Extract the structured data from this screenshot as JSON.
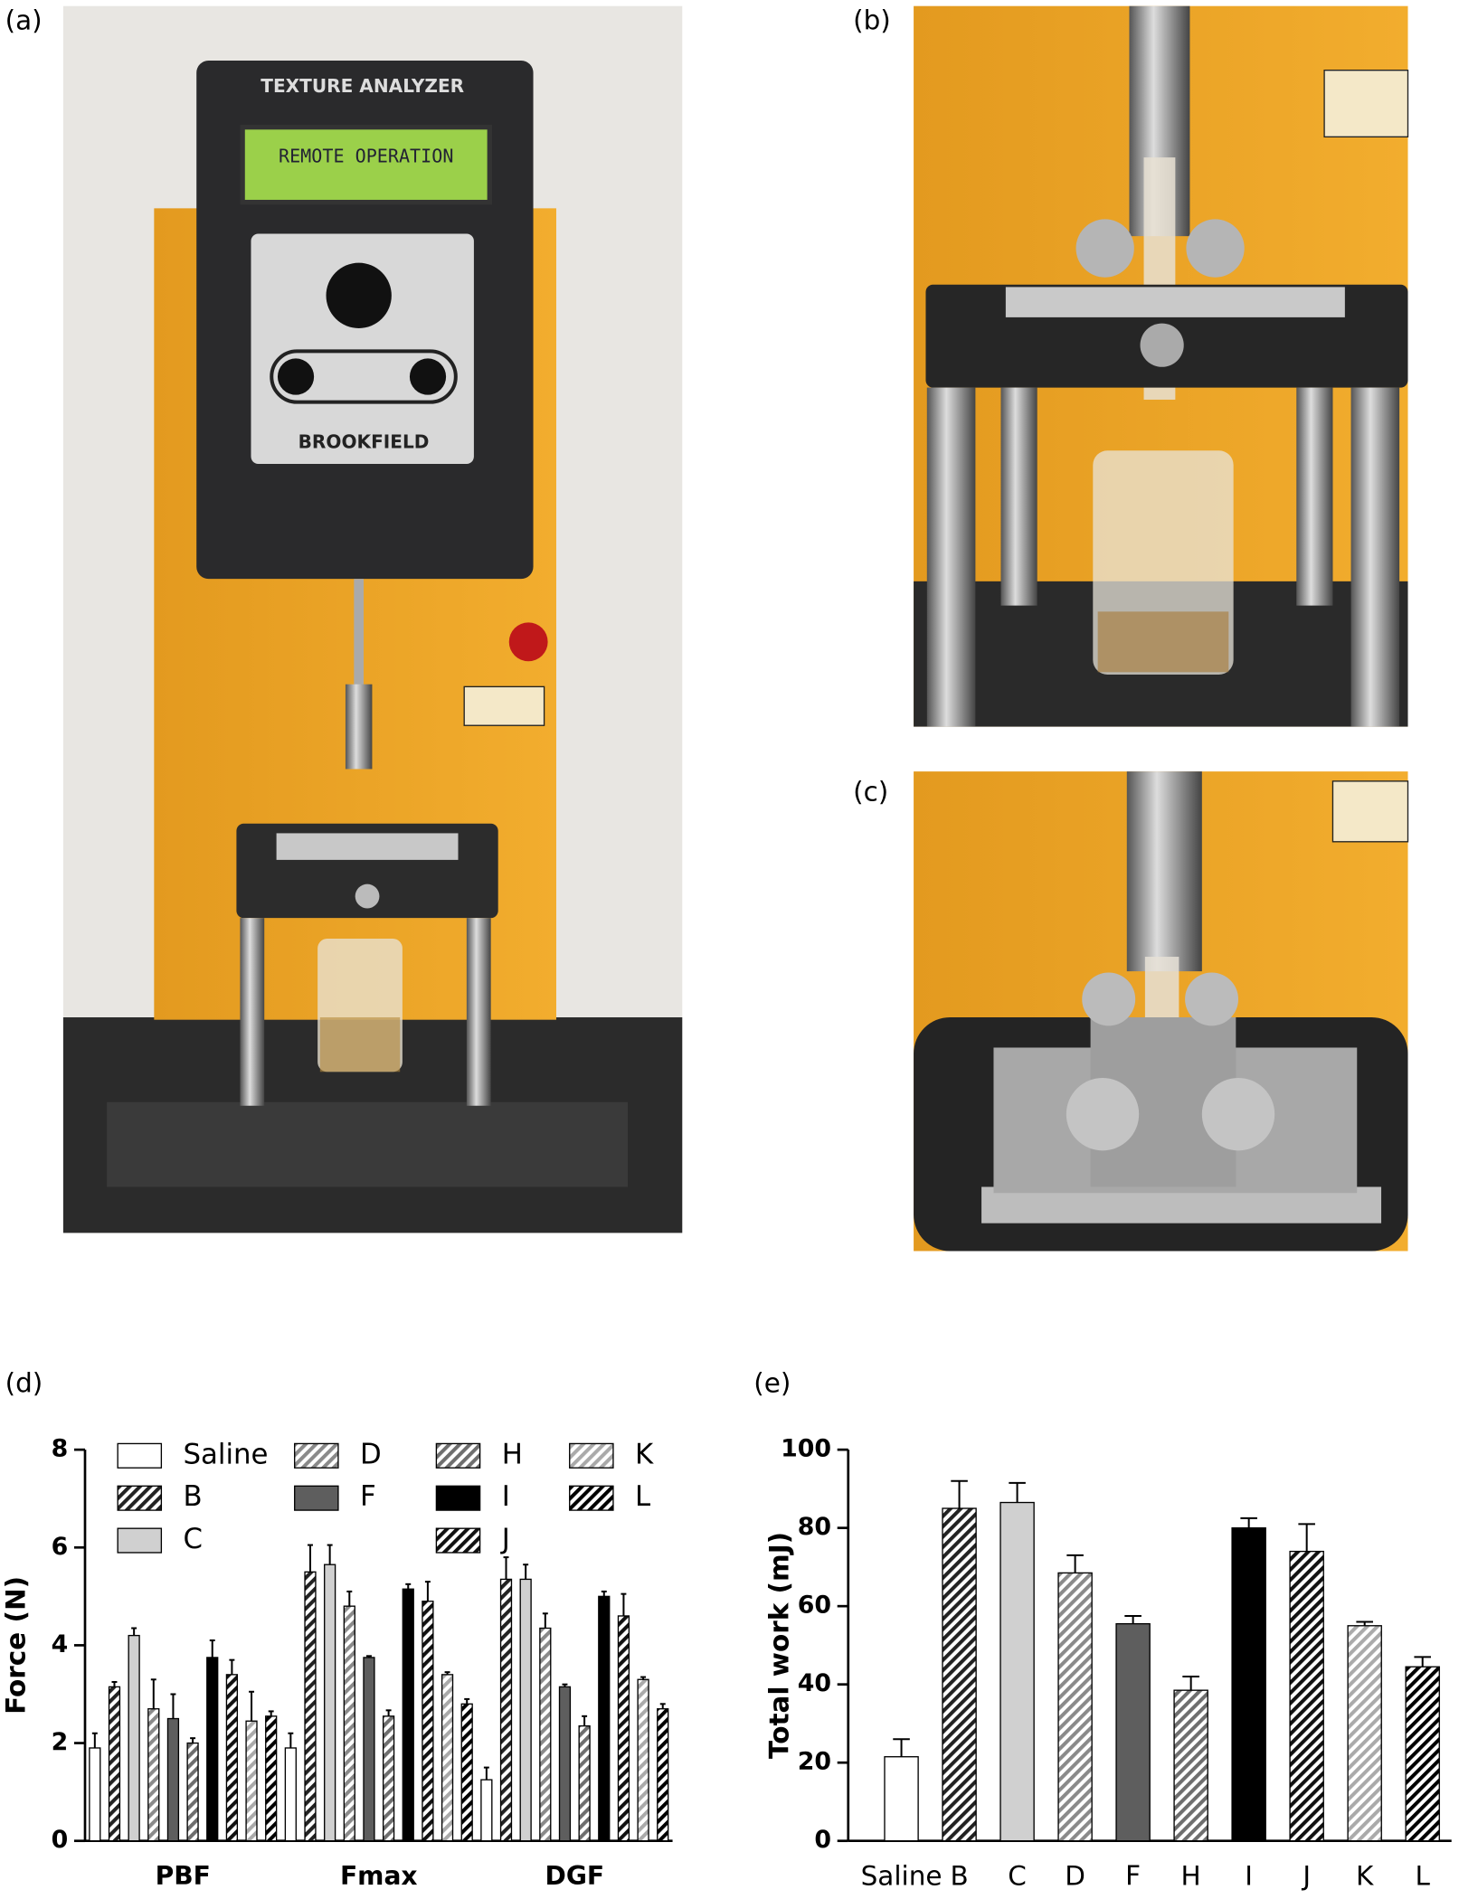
{
  "panel_labels": [
    "(a)",
    "(b)",
    "(c)",
    "(d)",
    "(e)"
  ],
  "photo_text": {
    "brand": "TEXTURE ANALYZER",
    "screen": "REMOTE OPERATION",
    "maker": "BROOKFIELD"
  },
  "chart_data": [
    {
      "type": "bar",
      "ylabel": "Force (N)",
      "categories": [
        "PBF",
        "Fmax",
        "DGF"
      ],
      "ylim": [
        0,
        8
      ],
      "yticks": [
        0,
        2,
        4,
        6,
        8
      ],
      "series": [
        {
          "name": "Saline",
          "color": "#ffffff",
          "hatch": false,
          "values": [
            1.9,
            1.9,
            1.25
          ],
          "errors": [
            0.3,
            0.3,
            0.25
          ]
        },
        {
          "name": "B",
          "color": "#222222",
          "hatch": true,
          "values": [
            3.15,
            5.5,
            5.35
          ],
          "errors": [
            0.1,
            0.55,
            0.45
          ]
        },
        {
          "name": "C",
          "color": "#d0d0d0",
          "hatch": false,
          "values": [
            4.2,
            5.65,
            5.35
          ],
          "errors": [
            0.15,
            0.4,
            0.3
          ]
        },
        {
          "name": "D",
          "color": "#8a8a8a",
          "hatch": true,
          "values": [
            2.7,
            4.8,
            4.35
          ],
          "errors": [
            0.6,
            0.3,
            0.3
          ]
        },
        {
          "name": "F",
          "color": "#5e5e5e",
          "hatch": false,
          "values": [
            2.5,
            3.75,
            3.15
          ],
          "errors": [
            0.5,
            0.03,
            0.05
          ]
        },
        {
          "name": "H",
          "color": "#6e6e6e",
          "hatch": true,
          "values": [
            2.0,
            2.55,
            2.35
          ],
          "errors": [
            0.1,
            0.12,
            0.2
          ]
        },
        {
          "name": "I",
          "color": "#000000",
          "hatch": false,
          "values": [
            3.75,
            5.15,
            5.0
          ],
          "errors": [
            0.35,
            0.1,
            0.1
          ]
        },
        {
          "name": "J",
          "color": "#111111",
          "hatch": true,
          "values": [
            3.4,
            4.9,
            4.6
          ],
          "errors": [
            0.3,
            0.4,
            0.45
          ]
        },
        {
          "name": "K",
          "color": "#aaaaaa",
          "hatch": true,
          "values": [
            2.45,
            3.4,
            3.3
          ],
          "errors": [
            0.6,
            0.05,
            0.05
          ]
        },
        {
          "name": "L",
          "color": "#000000",
          "hatch": true,
          "values": [
            2.55,
            2.8,
            2.7
          ],
          "errors": [
            0.1,
            0.1,
            0.1
          ]
        }
      ]
    },
    {
      "type": "bar",
      "ylabel": "Total work (mJ)",
      "categories": [
        "Saline",
        "B",
        "C",
        "D",
        "F",
        "H",
        "I",
        "J",
        "K",
        "L"
      ],
      "values": [
        21.5,
        85,
        86.5,
        68.5,
        55.5,
        38.5,
        80,
        74,
        55,
        44.5
      ],
      "errors": [
        4.5,
        7,
        5,
        4.5,
        2,
        3.5,
        2.5,
        7,
        1,
        2.5
      ],
      "colors": [
        "#ffffff",
        "#222222",
        "#d0d0d0",
        "#8a8a8a",
        "#5e5e5e",
        "#6e6e6e",
        "#000000",
        "#111111",
        "#aaaaaa",
        "#000000"
      ],
      "hatches": [
        false,
        true,
        false,
        true,
        false,
        true,
        false,
        true,
        true,
        true
      ],
      "ylim": [
        0,
        100
      ],
      "yticks": [
        0,
        20,
        40,
        60,
        80,
        100
      ]
    }
  ]
}
